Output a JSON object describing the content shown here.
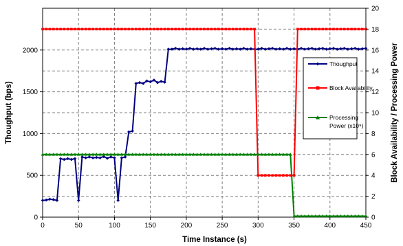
{
  "chart_data": {
    "type": "line",
    "xlabel": "Time Instance (s)",
    "ylabel_left": "Thoughput (bps)",
    "ylabel_right": "Block Availability / Processing Power",
    "xlim": [
      0,
      450
    ],
    "ylim_left": [
      0,
      2500
    ],
    "ylim_right": [
      0,
      20
    ],
    "x_ticks": [
      0,
      50,
      100,
      150,
      200,
      250,
      300,
      350,
      400,
      450
    ],
    "y_ticks_left": [
      0,
      500,
      1000,
      1500,
      2000
    ],
    "y_ticks_right": [
      0,
      2,
      4,
      6,
      8,
      10,
      12,
      14,
      16,
      18,
      20
    ],
    "grid": true,
    "legend_position": "right",
    "series": [
      {
        "name": "Thoughput",
        "axis": "left",
        "color": "#000080",
        "marker": "diamond",
        "x": [
          0,
          5,
          10,
          15,
          20,
          25,
          30,
          35,
          40,
          45,
          50,
          55,
          60,
          65,
          70,
          75,
          80,
          85,
          90,
          95,
          100,
          105,
          110,
          115,
          120,
          125,
          130,
          135,
          140,
          145,
          150,
          155,
          160,
          165,
          170,
          175,
          180,
          185,
          190,
          195,
          200,
          205,
          210,
          215,
          220,
          225,
          230,
          235,
          240,
          245,
          250,
          255,
          260,
          265,
          270,
          275,
          280,
          285,
          290,
          295,
          300,
          305,
          310,
          315,
          320,
          325,
          330,
          335,
          340,
          345,
          350,
          355,
          360,
          365,
          370,
          375,
          380,
          385,
          390,
          395,
          400,
          405,
          410,
          415,
          420,
          425,
          430,
          435,
          440,
          445,
          450
        ],
        "values": [
          200,
          205,
          215,
          210,
          200,
          700,
          690,
          700,
          690,
          700,
          200,
          720,
          710,
          720,
          710,
          715,
          710,
          725,
          705,
          720,
          710,
          200,
          710,
          720,
          1020,
          1030,
          1600,
          1610,
          1600,
          1630,
          1620,
          1640,
          1610,
          1625,
          1615,
          2010,
          2010,
          2020,
          2010,
          2015,
          2010,
          2020,
          2010,
          2015,
          2010,
          2020,
          2010,
          2015,
          2020,
          2010,
          2015,
          2010,
          2020,
          2010,
          2015,
          2010,
          2020,
          2010,
          2015,
          2010,
          2010,
          2020,
          2010,
          2015,
          2020,
          2010,
          2015,
          2010,
          2020,
          2010,
          2015,
          2010,
          2020,
          2010,
          2015,
          2020,
          2010,
          2015,
          2020,
          2010,
          2015,
          2020,
          2010,
          2015,
          2020,
          2010,
          2015,
          2020,
          2010,
          2015,
          2020
        ]
      },
      {
        "name": "Block Availability",
        "axis": "right",
        "color": "#ff0000",
        "marker": "square",
        "x": [
          0,
          5,
          10,
          15,
          20,
          25,
          30,
          35,
          40,
          45,
          50,
          55,
          60,
          65,
          70,
          75,
          80,
          85,
          90,
          95,
          100,
          105,
          110,
          115,
          120,
          125,
          130,
          135,
          140,
          145,
          150,
          155,
          160,
          165,
          170,
          175,
          180,
          185,
          190,
          195,
          200,
          205,
          210,
          215,
          220,
          225,
          230,
          235,
          240,
          245,
          250,
          255,
          260,
          265,
          270,
          275,
          280,
          285,
          290,
          295,
          300,
          305,
          310,
          315,
          320,
          325,
          330,
          335,
          340,
          345,
          350,
          355,
          360,
          365,
          370,
          375,
          380,
          385,
          390,
          395,
          400,
          405,
          410,
          415,
          420,
          425,
          430,
          435,
          440,
          445,
          450
        ],
        "values": [
          18,
          18,
          18,
          18,
          18,
          18,
          18,
          18,
          18,
          18,
          18,
          18,
          18,
          18,
          18,
          18,
          18,
          18,
          18,
          18,
          18,
          18,
          18,
          18,
          18,
          18,
          18,
          18,
          18,
          18,
          18,
          18,
          18,
          18,
          18,
          18,
          18,
          18,
          18,
          18,
          18,
          18,
          18,
          18,
          18,
          18,
          18,
          18,
          18,
          18,
          18,
          18,
          18,
          18,
          18,
          18,
          18,
          18,
          18,
          18,
          4,
          4,
          4,
          4,
          4,
          4,
          4,
          4,
          4,
          4,
          4,
          18,
          18,
          18,
          18,
          18,
          18,
          18,
          18,
          18,
          18,
          18,
          18,
          18,
          18,
          18,
          18,
          18,
          18,
          18,
          18
        ]
      },
      {
        "name": "Processing Power (x10⁹)",
        "name_lines": [
          "Processing",
          "Power (x10⁹)"
        ],
        "axis": "right",
        "color": "#008000",
        "marker": "triangle",
        "x": [
          0,
          5,
          10,
          15,
          20,
          25,
          30,
          35,
          40,
          45,
          50,
          55,
          60,
          65,
          70,
          75,
          80,
          85,
          90,
          95,
          100,
          105,
          110,
          115,
          120,
          125,
          130,
          135,
          140,
          145,
          150,
          155,
          160,
          165,
          170,
          175,
          180,
          185,
          190,
          195,
          200,
          205,
          210,
          215,
          220,
          225,
          230,
          235,
          240,
          245,
          250,
          255,
          260,
          265,
          270,
          275,
          280,
          285,
          290,
          295,
          300,
          305,
          310,
          315,
          320,
          325,
          330,
          335,
          340,
          345,
          350,
          355,
          360,
          365,
          370,
          375,
          380,
          385,
          390,
          395,
          400,
          405,
          410,
          415,
          420,
          425,
          430,
          435,
          440,
          445,
          450
        ],
        "values": [
          6,
          6,
          6,
          6,
          6,
          6,
          6,
          6,
          6,
          6,
          6,
          6,
          6,
          6,
          6,
          6,
          6,
          6,
          6,
          6,
          6,
          6,
          6,
          6,
          6,
          6,
          6,
          6,
          6,
          6,
          6,
          6,
          6,
          6,
          6,
          6,
          6,
          6,
          6,
          6,
          6,
          6,
          6,
          6,
          6,
          6,
          6,
          6,
          6,
          6,
          6,
          6,
          6,
          6,
          6,
          6,
          6,
          6,
          6,
          6,
          6,
          6,
          6,
          6,
          6,
          6,
          6,
          6,
          6,
          6,
          0.1,
          0.1,
          0.1,
          0.1,
          0.1,
          0.1,
          0.1,
          0.1,
          0.1,
          0.1,
          0.1,
          0.1,
          0.1,
          0.1,
          0.1,
          0.1,
          0.1,
          0.1,
          0.1,
          0.1,
          0.1
        ]
      }
    ]
  }
}
